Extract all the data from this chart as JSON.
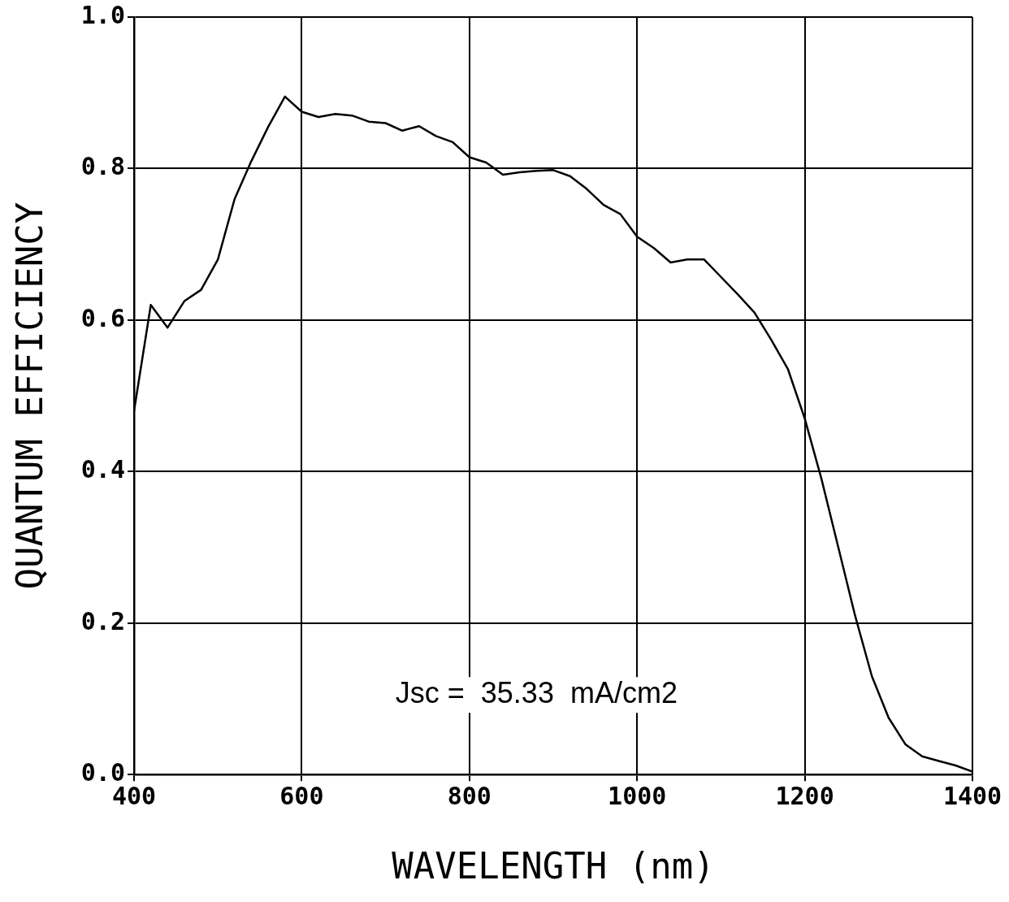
{
  "chart_data": {
    "type": "line",
    "xlabel": "WAVELENGTH (nm)",
    "ylabel": "QUANTUM EFFICIENCY",
    "annotations": [
      "Jsc =  35.33  mA/cm2"
    ],
    "series": [
      {
        "color": "#000000",
        "x": [
          400,
          420,
          440,
          460,
          480,
          500,
          520,
          540,
          560,
          580,
          600,
          620,
          640,
          660,
          680,
          700,
          720,
          740,
          760,
          780,
          800,
          820,
          840,
          860,
          880,
          900,
          920,
          940,
          960,
          980,
          1000,
          1020,
          1040,
          1060,
          1080,
          1100,
          1120,
          1140,
          1160,
          1180,
          1200,
          1220,
          1240,
          1260,
          1280,
          1300,
          1320,
          1340,
          1360,
          1380,
          1400
        ],
        "values": [
          0.48,
          0.62,
          0.59,
          0.625,
          0.64,
          0.68,
          0.76,
          0.81,
          0.855,
          0.895,
          0.875,
          0.868,
          0.872,
          0.87,
          0.862,
          0.86,
          0.85,
          0.856,
          0.843,
          0.835,
          0.815,
          0.808,
          0.792,
          0.795,
          0.797,
          0.798,
          0.79,
          0.773,
          0.752,
          0.74,
          0.71,
          0.695,
          0.676,
          0.68,
          0.68,
          0.657,
          0.634,
          0.61,
          0.574,
          0.535,
          0.47,
          0.39,
          0.3,
          0.21,
          0.13,
          0.075,
          0.04,
          0.024,
          0.018,
          0.012,
          0.004
        ]
      }
    ],
    "xlim": [
      400,
      1400
    ],
    "xticks": [
      400,
      600,
      800,
      1000,
      1200,
      1400
    ],
    "ylim": [
      0,
      1
    ],
    "yticks": [
      {
        "value": 0,
        "label": "0.0"
      },
      {
        "value": 0.2,
        "label": "0.2"
      },
      {
        "value": 0.4,
        "label": "0.4"
      },
      {
        "value": 0.6,
        "label": "0.6"
      },
      {
        "value": 0.8,
        "label": "0.8"
      },
      {
        "value": 1,
        "label": "1.0"
      }
    ],
    "grid": true,
    "legend": false,
    "marker": "none",
    "line_style": "solid"
  }
}
